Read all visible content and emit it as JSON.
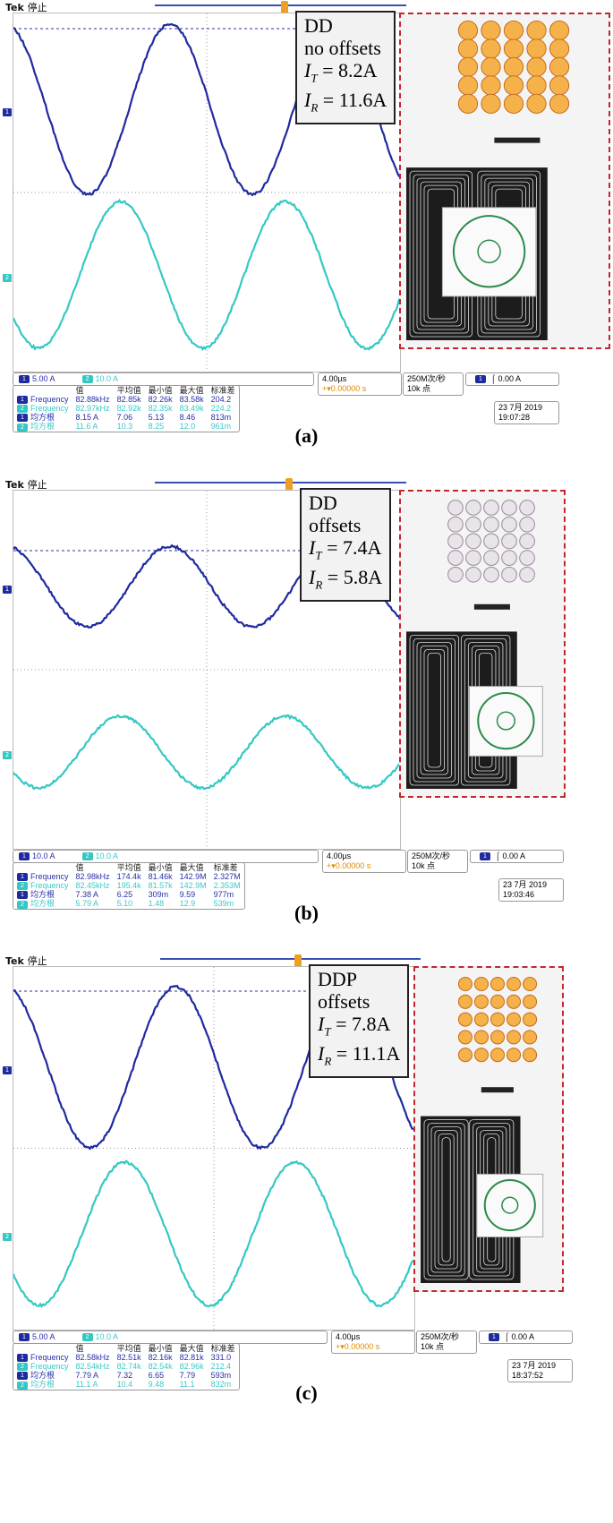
{
  "colors": {
    "ch1": "#1f2a9e",
    "ch2": "#35c8c3",
    "trigger": "#f0a020",
    "photo_border": "#c0282d"
  },
  "panels": [
    {
      "caption": "(a)",
      "tek": "Tek",
      "status": "停止",
      "info": {
        "line1": "DD",
        "line2": "no offsets",
        "it_label": "I",
        "it_sub": "T",
        "it_val": " = 8.2A",
        "ir_label": "I",
        "ir_sub": "R",
        "ir_val": " = 11.6A"
      },
      "ch1_scale": "5.00 A",
      "ch2_scale": "10.0 A",
      "headers": [
        "",
        "值",
        "平均值",
        "最小值",
        "最大值",
        "标准差"
      ],
      "rows": [
        {
          "ch": "1",
          "name": "Frequency",
          "v": [
            "82.88kHz",
            "82.85k",
            "82.26k",
            "83.58k",
            "204.2"
          ]
        },
        {
          "ch": "2",
          "name": "Frequency",
          "v": [
            "82.97kHz",
            "82.92k",
            "82.35k",
            "83.49k",
            "224.2"
          ]
        },
        {
          "ch": "1",
          "name": "均方根",
          "v": [
            "8.15 A",
            "7.06",
            "5.13",
            "8.46",
            "813m"
          ]
        },
        {
          "ch": "2",
          "name": "均方根",
          "v": [
            "11.6 A",
            "10.3",
            "8.25",
            "12.0",
            "961m"
          ]
        }
      ],
      "timebase": "4.00µs",
      "delay": "+▾0.00000 s",
      "sample_rate": "250M次/秒",
      "record": "10k 点",
      "trigger_ch": "1",
      "trigger_level": "0.00 A",
      "date": "23 7月  2019",
      "time": "19:07:28"
    },
    {
      "caption": "(b)",
      "tek": "Tek",
      "status": "停止",
      "info": {
        "line1": "DD",
        "line2": "offsets",
        "it_label": "I",
        "it_sub": "T",
        "it_val": " = 7.4A",
        "ir_label": "I",
        "ir_sub": "R",
        "ir_val": " = 5.8A"
      },
      "ch1_scale": "10.0 A",
      "ch2_scale": "10.0 A",
      "headers": [
        "",
        "值",
        "平均值",
        "最小值",
        "最大值",
        "标准差"
      ],
      "rows": [
        {
          "ch": "1",
          "name": "Frequency",
          "v": [
            "82.98kHz",
            "174.4k",
            "81.46k",
            "142.9M",
            "2.327M"
          ]
        },
        {
          "ch": "2",
          "name": "Frequency",
          "v": [
            "82.45kHz",
            "195.4k",
            "81.57k",
            "142.9M",
            "2.353M"
          ]
        },
        {
          "ch": "1",
          "name": "均方根",
          "v": [
            "7.38 A",
            "6.25",
            "309m",
            "9.59",
            "977m"
          ]
        },
        {
          "ch": "2",
          "name": "均方根",
          "v": [
            "5.79 A",
            "5.10",
            "1.48",
            "12.9",
            "539m"
          ]
        }
      ],
      "timebase": "4.00µs",
      "delay": "+▾0.00000 s",
      "sample_rate": "250M次/秒",
      "record": "10k 点",
      "trigger_ch": "1",
      "trigger_level": "0.00 A",
      "date": "23 7月  2019",
      "time": "19:03:46"
    },
    {
      "caption": "(c)",
      "tek": "Tek",
      "status": "停止",
      "info": {
        "line1": "DDP",
        "line2": "offsets",
        "it_label": "I",
        "it_sub": "T",
        "it_val": " = 7.8A",
        "ir_label": "I",
        "ir_sub": "R",
        "ir_val": " = 11.1A"
      },
      "ch1_scale": "5.00 A",
      "ch2_scale": "10.0 A",
      "headers": [
        "",
        "值",
        "平均值",
        "最小值",
        "最大值",
        "标准差"
      ],
      "rows": [
        {
          "ch": "1",
          "name": "Frequency",
          "v": [
            "82.58kHz",
            "82.51k",
            "82.16k",
            "82.81k",
            "331.0"
          ]
        },
        {
          "ch": "2",
          "name": "Frequency",
          "v": [
            "82.54kHz",
            "82.74k",
            "82.54k",
            "82.96k",
            "212.4"
          ]
        },
        {
          "ch": "1",
          "name": "均方根",
          "v": [
            "7.79 A",
            "7.32",
            "6.65",
            "7.79",
            "593m"
          ]
        },
        {
          "ch": "2",
          "name": "均方根",
          "v": [
            "11.1 A",
            "10.4",
            "9.48",
            "11.1",
            "832m"
          ]
        }
      ],
      "timebase": "4.00µs",
      "delay": "+▾0.00000 s",
      "sample_rate": "250M次/秒",
      "record": "10k 点",
      "trigger_ch": "1",
      "trigger_level": "0.00 A",
      "date": "23 7月  2019",
      "time": "18:37:52"
    }
  ]
}
